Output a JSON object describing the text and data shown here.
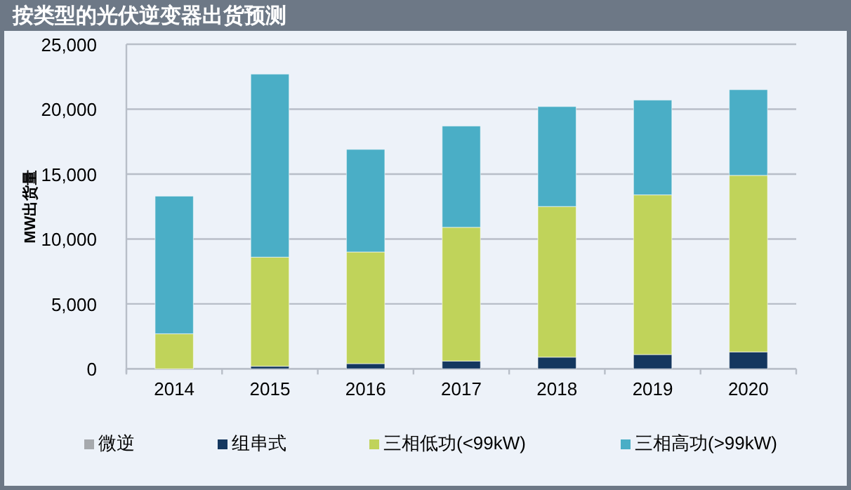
{
  "chart_data": {
    "type": "bar",
    "title": "按类型的光伏逆变器出货预测",
    "ylabel": "MW出货量",
    "categories": [
      "2014",
      "2015",
      "2016",
      "2017",
      "2018",
      "2019",
      "2020"
    ],
    "stacked": true,
    "ylim": [
      0,
      25000
    ],
    "yticks": [
      {
        "value": 0,
        "label": "0"
      },
      {
        "value": 5000,
        "label": "5,000"
      },
      {
        "value": 10000,
        "label": "10,000"
      },
      {
        "value": 15000,
        "label": "15,000"
      },
      {
        "value": 20000,
        "label": "20,000"
      },
      {
        "value": 25000,
        "label": "25,000"
      }
    ],
    "grid": "y",
    "legend": "bottom",
    "series": [
      {
        "name": "微逆",
        "color": "#a6a9ad",
        "values": [
          0,
          0,
          0,
          0,
          0,
          0,
          0
        ]
      },
      {
        "name": "组串式",
        "color": "#14375f",
        "values": [
          0,
          200,
          400,
          600,
          900,
          1100,
          1300
        ]
      },
      {
        "name": "三相低功(<99kW)",
        "color": "#c0d35a",
        "values": [
          2700,
          8400,
          8600,
          10300,
          11600,
          12300,
          13600
        ]
      },
      {
        "name": "三相高功(>99kW)",
        "color": "#4aaec6",
        "values": [
          10600,
          14100,
          7900,
          7800,
          7700,
          7300,
          6600
        ]
      }
    ]
  }
}
